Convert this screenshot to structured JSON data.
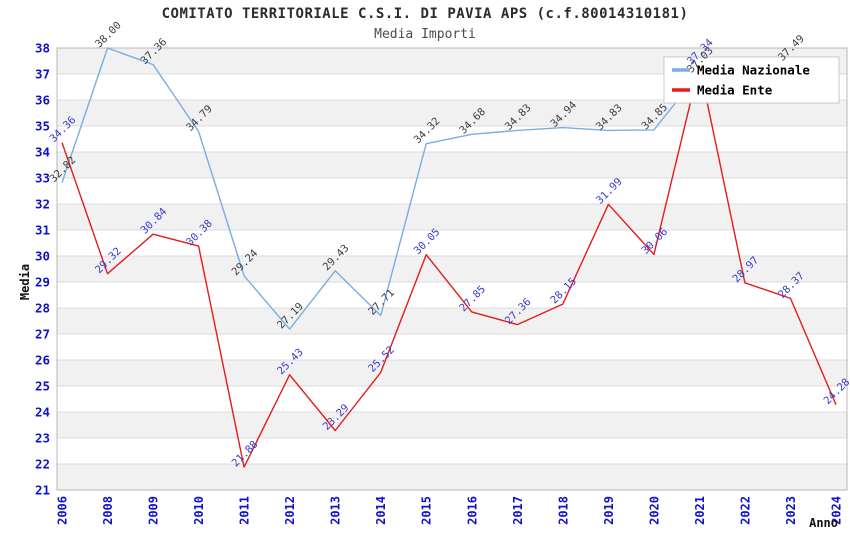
{
  "title": "COMITATO TERRITORIALE C.S.I. DI PAVIA APS (c.f.80014310181)",
  "subtitle": "Media Importi",
  "chart_data": {
    "type": "line",
    "title": "COMITATO TERRITORIALE C.S.I. DI PAVIA APS (c.f.80014310181)",
    "subtitle": "Media Importi",
    "xlabel": "Anno",
    "ylabel": "Media",
    "ylim": [
      21,
      38
    ],
    "y_tick_step": 1,
    "grid": true,
    "banded_background": true,
    "legend_position": "top-right",
    "categories": [
      "2006",
      "2008",
      "2009",
      "2010",
      "2011",
      "2012",
      "2013",
      "2014",
      "2015",
      "2016",
      "2017",
      "2018",
      "2019",
      "2020",
      "2021",
      "2022",
      "2023",
      "2024"
    ],
    "series": [
      {
        "name": "Media Nazionale",
        "color": "#79ade2",
        "label_color": "#3d3d3d",
        "values": [
          32.82,
          38.0,
          37.36,
          34.79,
          29.24,
          27.19,
          29.43,
          27.71,
          34.32,
          34.68,
          34.83,
          34.94,
          34.83,
          34.85,
          37.03,
          null,
          37.49,
          null
        ]
      },
      {
        "name": "Media Ente",
        "color": "#e41c1c",
        "label_color": "#3a3ac8",
        "values": [
          34.36,
          29.32,
          30.84,
          30.38,
          21.88,
          25.43,
          23.29,
          25.52,
          30.05,
          27.85,
          27.36,
          28.15,
          31.99,
          30.06,
          37.34,
          28.97,
          28.37,
          24.28
        ]
      }
    ],
    "colors": {
      "band": "#f1f1f1",
      "gridline": "#dcdcdc",
      "plot_border": "#b8b8b8",
      "axis_tick_text": "#1111cc",
      "axis_title_text": "#111111",
      "legend_border": "#c8c8c8",
      "legend_text": "#000000"
    }
  }
}
